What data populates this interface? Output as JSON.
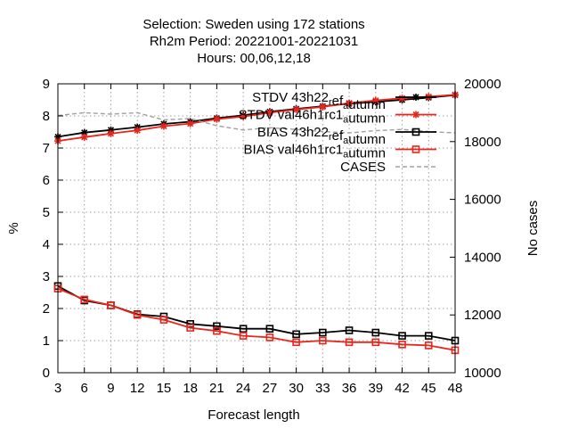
{
  "chart_data": {
    "type": "line",
    "title_lines": [
      "Selection: Sweden using   172 stations",
      "Rh2m   Period: 20221001-20221031",
      "Hours:  00,06,12,18"
    ],
    "xlabel": "Forecast length",
    "ylabel": "%",
    "y2label": "No cases",
    "x": [
      3,
      6,
      9,
      12,
      15,
      18,
      21,
      24,
      27,
      30,
      33,
      36,
      39,
      42,
      45,
      48
    ],
    "xlim": [
      3,
      48
    ],
    "ylim": [
      0,
      9
    ],
    "y2lim": [
      10000,
      20000
    ],
    "xticks": [
      3,
      6,
      9,
      12,
      15,
      18,
      21,
      24,
      27,
      30,
      33,
      36,
      39,
      42,
      45,
      48
    ],
    "yticks": [
      0,
      1,
      2,
      3,
      4,
      5,
      6,
      7,
      8,
      9
    ],
    "y2ticks": [
      10000,
      12000,
      14000,
      16000,
      18000,
      20000
    ],
    "grid": true,
    "legend_position": "top-right",
    "series": [
      {
        "name": "STDV 43h22_ref_autumn",
        "legend_main": "STDV 43h22",
        "legend_sub1": "r",
        "legend_mid": "ef",
        "legend_sub2": "a",
        "legend_tail": "utumn",
        "color": "#000000",
        "marker": "star",
        "axis": "y1",
        "values": [
          7.35,
          7.48,
          7.56,
          7.65,
          7.75,
          7.82,
          7.93,
          8.02,
          8.13,
          8.22,
          8.3,
          8.38,
          8.44,
          8.5,
          8.57,
          8.65
        ]
      },
      {
        "name": "STDV val46h1rc1_autumn",
        "legend_main": "STDV val46h1rc1",
        "legend_sub1": "",
        "legend_mid": "",
        "legend_sub2": "a",
        "legend_tail": "utumn",
        "color": "#e8261c",
        "marker": "star",
        "axis": "y1",
        "values": [
          7.22,
          7.34,
          7.45,
          7.55,
          7.68,
          7.76,
          7.9,
          7.98,
          8.1,
          8.2,
          8.28,
          8.4,
          8.48,
          8.55,
          8.6,
          8.66
        ]
      },
      {
        "name": "BIAS 43h22_ref_autumn",
        "legend_main": "BIAS 43h22",
        "legend_sub1": "r",
        "legend_mid": "ef",
        "legend_sub2": "a",
        "legend_tail": "utumn",
        "color": "#000000",
        "marker": "square",
        "axis": "y1",
        "values": [
          2.7,
          2.25,
          2.1,
          1.82,
          1.75,
          1.52,
          1.45,
          1.37,
          1.37,
          1.2,
          1.25,
          1.32,
          1.25,
          1.15,
          1.15,
          1.0
        ]
      },
      {
        "name": "BIAS val46h1rc1_autumn",
        "legend_main": "BIAS val46h1rc1",
        "legend_sub1": "",
        "legend_mid": "",
        "legend_sub2": "a",
        "legend_tail": "utumn",
        "color": "#e8261c",
        "marker": "square",
        "axis": "y1",
        "values": [
          2.62,
          2.28,
          2.1,
          1.8,
          1.65,
          1.4,
          1.3,
          1.15,
          1.1,
          0.95,
          1.0,
          0.95,
          0.95,
          0.88,
          0.85,
          0.7
        ]
      },
      {
        "name": "CASES",
        "legend_main": "CASES",
        "legend_sub1": "",
        "legend_mid": "",
        "legend_sub2": "",
        "legend_tail": "",
        "color": "#a0a0a0",
        "marker": "none",
        "dashed": true,
        "axis": "y2",
        "values": [
          18900,
          19000,
          18950,
          19000,
          18750,
          18800,
          18550,
          18400,
          18480,
          18420,
          18350,
          18300,
          18380,
          18420,
          18350,
          18300
        ]
      }
    ]
  }
}
